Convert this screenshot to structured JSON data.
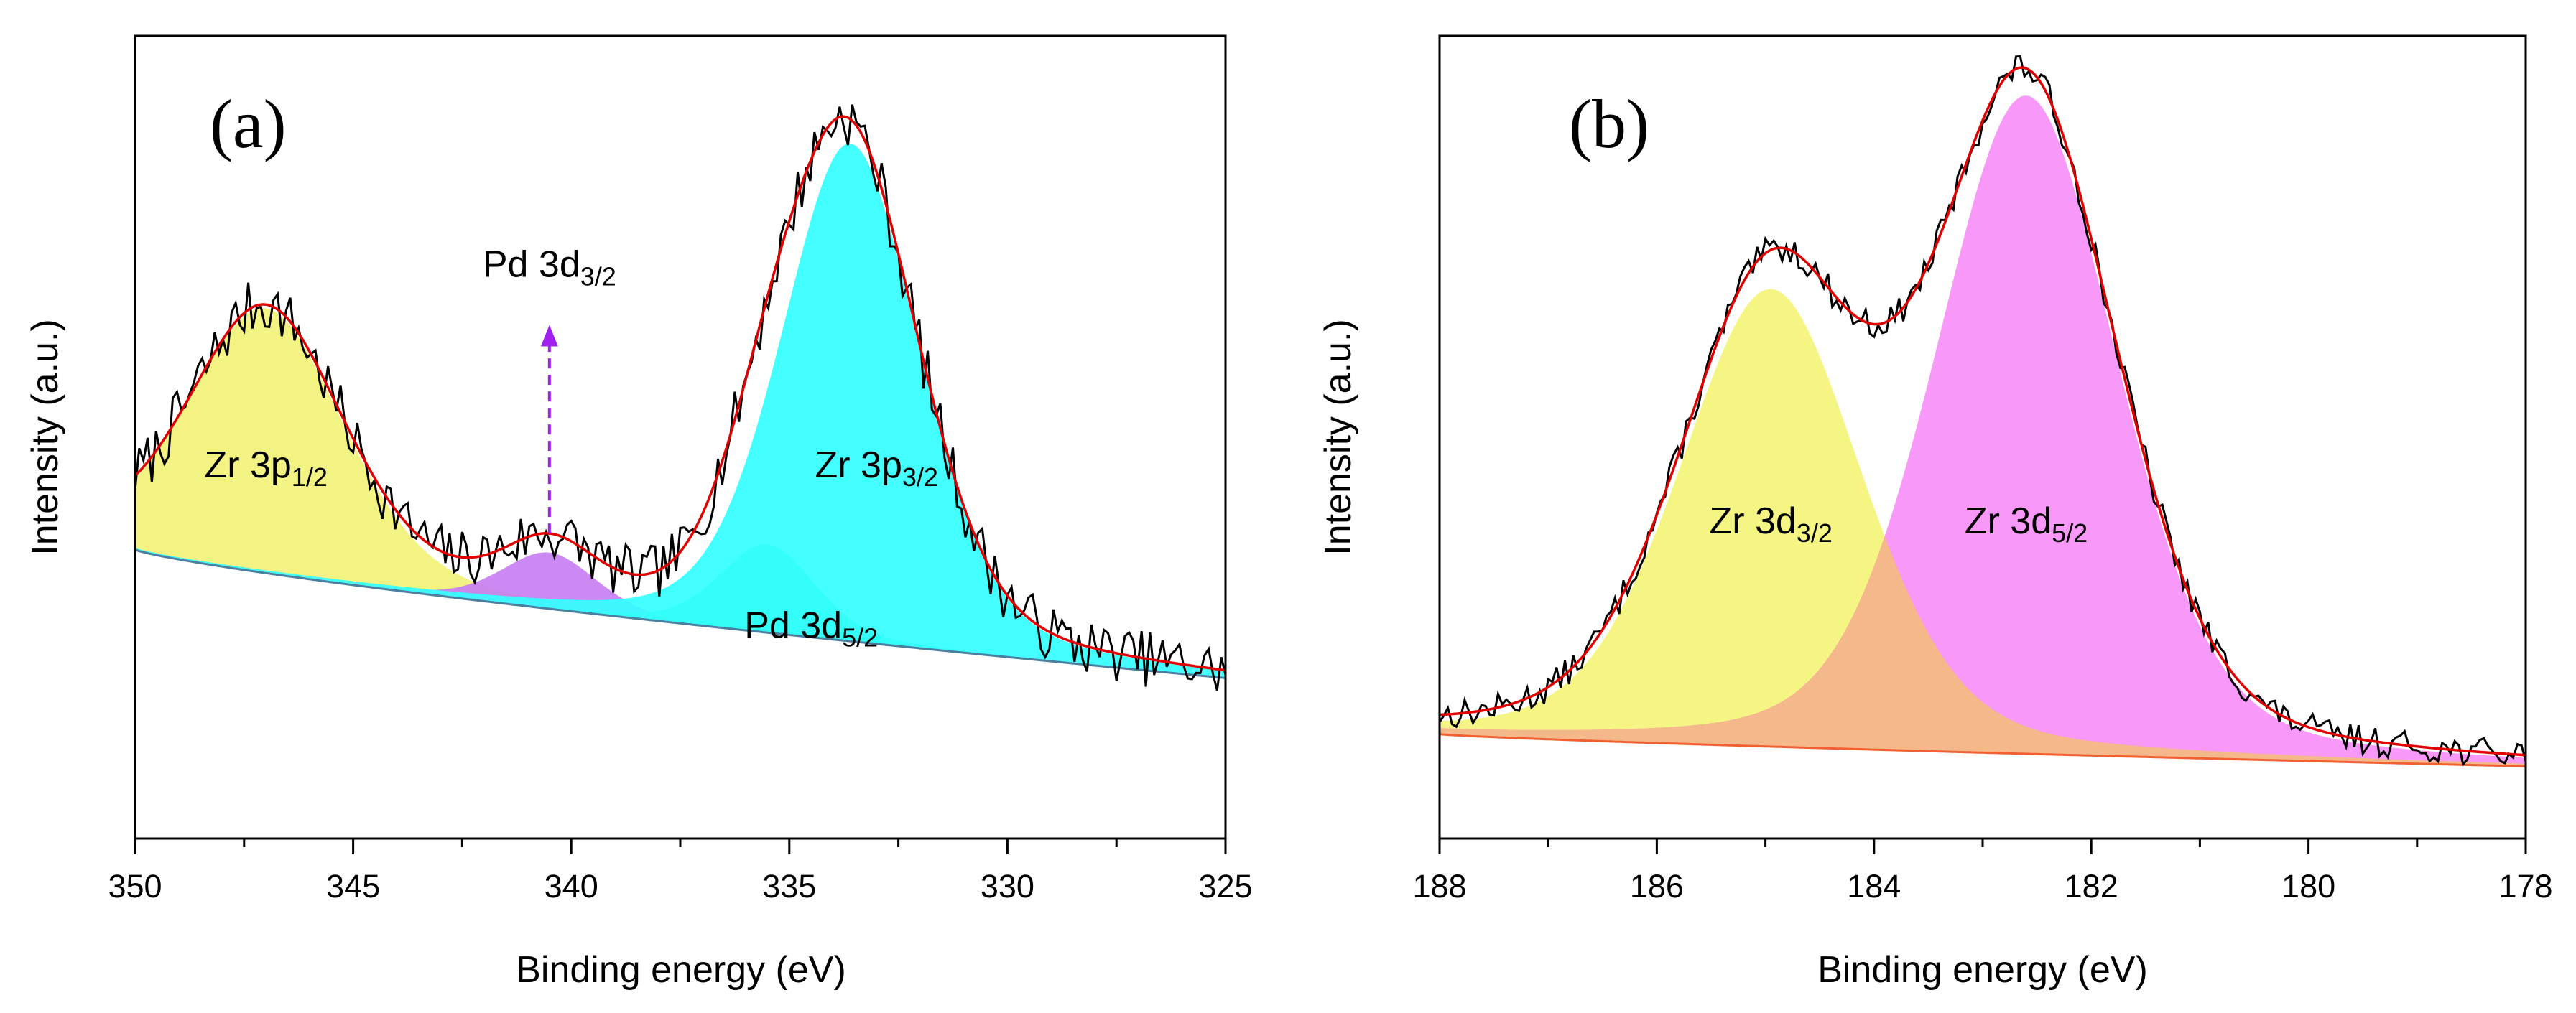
{
  "chart_data": [
    {
      "type": "line",
      "panel_label": "(a)",
      "xlabel": "Binding energy (eV)",
      "ylabel": "Intensity (a.u.)",
      "xlim": [
        350,
        325
      ],
      "ylim": [
        0,
        100
      ],
      "x_reversed": true,
      "xticks": [
        "350",
        "345",
        "340",
        "335",
        "330",
        "325"
      ],
      "baseline": {
        "start": 36,
        "end": 20
      },
      "components": [
        {
          "name": "Zr 3p1/2",
          "label_main": "Zr 3p",
          "label_sub": "1/2",
          "center": 347.0,
          "amplitude": 33,
          "width": 1.8,
          "color": "#f2f27a",
          "label_x": 347.0,
          "label_y": 45
        },
        {
          "name": "Pd 3d3/2",
          "label_main": "Pd 3d",
          "label_sub": "3/2",
          "center": 340.5,
          "amplitude": 7,
          "width": 1.1,
          "color": "#c87ef2",
          "label_x": 340.5,
          "label_y": 70
        },
        {
          "name": "Pd 3d5/2",
          "label_main": "Pd 3d",
          "label_sub": "5/2",
          "center": 335.5,
          "amplitude": 11,
          "width": 1.1,
          "color": "#22ec8e",
          "label_x": 334.5,
          "label_y": 25
        },
        {
          "name": "Zr 3p3/2",
          "label_main": "Zr 3p",
          "label_sub": "3/2",
          "center": 333.6,
          "amplitude": 62,
          "width": 1.6,
          "color": "#33ffff",
          "label_x": 333.0,
          "label_y": 45
        }
      ],
      "arrow": {
        "x": 340.5,
        "y_from": 38,
        "y_to": 64,
        "color": "#a020f0"
      },
      "noise_amplitude": 3.5,
      "noise_seed": 7
    },
    {
      "type": "line",
      "panel_label": "(b)",
      "xlabel": "Binding energy (eV)",
      "ylabel": "Intensity (a.u.)",
      "xlim": [
        188,
        178
      ],
      "ylim": [
        0,
        100
      ],
      "x_reversed": true,
      "xticks": [
        "188",
        "186",
        "184",
        "182",
        "180",
        "178"
      ],
      "baseline": {
        "start": 13,
        "end": 9
      },
      "components": [
        {
          "name": "Zr 3d3/2",
          "label_main": "Zr 3d",
          "label_sub": "3/2",
          "center": 184.95,
          "amplitude": 57,
          "width": 0.85,
          "color": "#f4f47a",
          "label_x": 184.95,
          "label_y": 38
        },
        {
          "name": "Zr 3d5/2",
          "label_main": "Zr 3d",
          "label_sub": "5/2",
          "center": 182.6,
          "amplitude": 82,
          "width": 0.85,
          "color": "#f78ff7",
          "label_x": 182.6,
          "label_y": 38
        }
      ],
      "overlap_color": "#f5b88a",
      "noise_amplitude": 1.8,
      "noise_seed": 13
    }
  ]
}
